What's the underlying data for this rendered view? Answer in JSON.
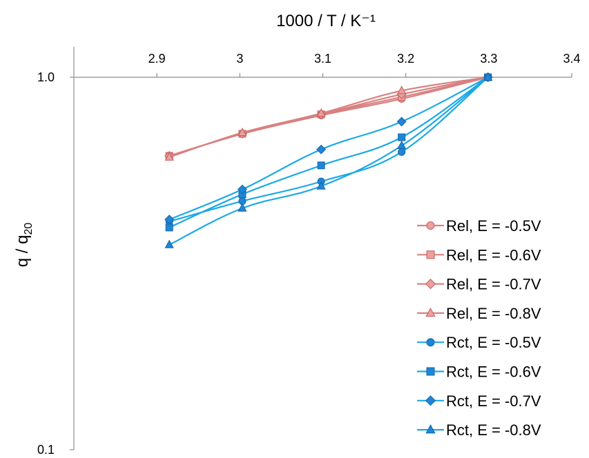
{
  "chart_data": {
    "type": "line",
    "title": "",
    "xlabel": "1000 / T / K⁻¹",
    "ylabel_main": "q / q",
    "ylabel_sub": "20",
    "x_scale": "linear",
    "y_scale": "log",
    "x_axis_position": "top",
    "xlim": [
      2.8,
      3.4
    ],
    "ylim": [
      0.1,
      1.0
    ],
    "x_ticks": [
      "2.9",
      "3",
      "3.1",
      "3.2",
      "3.3",
      "3.4"
    ],
    "y_ticks": [
      "0.1",
      "1.0"
    ],
    "x_values": [
      2.915,
      3.003,
      3.098,
      3.195,
      3.299
    ],
    "grid": false,
    "legend_position": "right",
    "series": [
      {
        "name": "Rel, E = -0.5V",
        "group": "Rel",
        "marker": "circle",
        "color": "#d98080",
        "values": [
          0.615,
          0.705,
          0.79,
          0.875,
          1.0
        ]
      },
      {
        "name": "Rel, E = -0.6V",
        "group": "Rel",
        "marker": "square",
        "color": "#d98080",
        "values": [
          0.615,
          0.705,
          0.795,
          0.885,
          1.0
        ]
      },
      {
        "name": "Rel, E = -0.7V",
        "group": "Rel",
        "marker": "diamond",
        "color": "#d98080",
        "values": [
          0.615,
          0.705,
          0.795,
          0.9,
          1.0
        ]
      },
      {
        "name": "Rel, E = -0.8V",
        "group": "Rel",
        "marker": "triangle",
        "color": "#d98080",
        "values": [
          0.61,
          0.71,
          0.8,
          0.92,
          1.0
        ]
      },
      {
        "name": "Rct, E = -0.5V",
        "group": "Rct",
        "marker": "circle",
        "color": "#1aa9e6",
        "values": [
          0.41,
          0.465,
          0.525,
          0.63,
          1.0
        ]
      },
      {
        "name": "Rct, E = -0.6V",
        "group": "Rct",
        "marker": "square",
        "color": "#1aa9e6",
        "values": [
          0.395,
          0.485,
          0.58,
          0.69,
          1.0
        ]
      },
      {
        "name": "Rct, E = -0.7V",
        "group": "Rct",
        "marker": "diamond",
        "color": "#1aa9e6",
        "values": [
          0.415,
          0.5,
          0.64,
          0.76,
          1.0
        ]
      },
      {
        "name": "Rct, E = -0.8V",
        "group": "Rct",
        "marker": "triangle",
        "color": "#1aa9e6",
        "values": [
          0.355,
          0.445,
          0.51,
          0.655,
          1.0
        ]
      }
    ]
  },
  "style": {
    "rel_fill": "#e8a0a0",
    "rel_stroke": "#c85a5a",
    "rct_fill": "#1f86d6",
    "rct_stroke": "#1565a8",
    "axis_color": "#8c8c8c"
  }
}
